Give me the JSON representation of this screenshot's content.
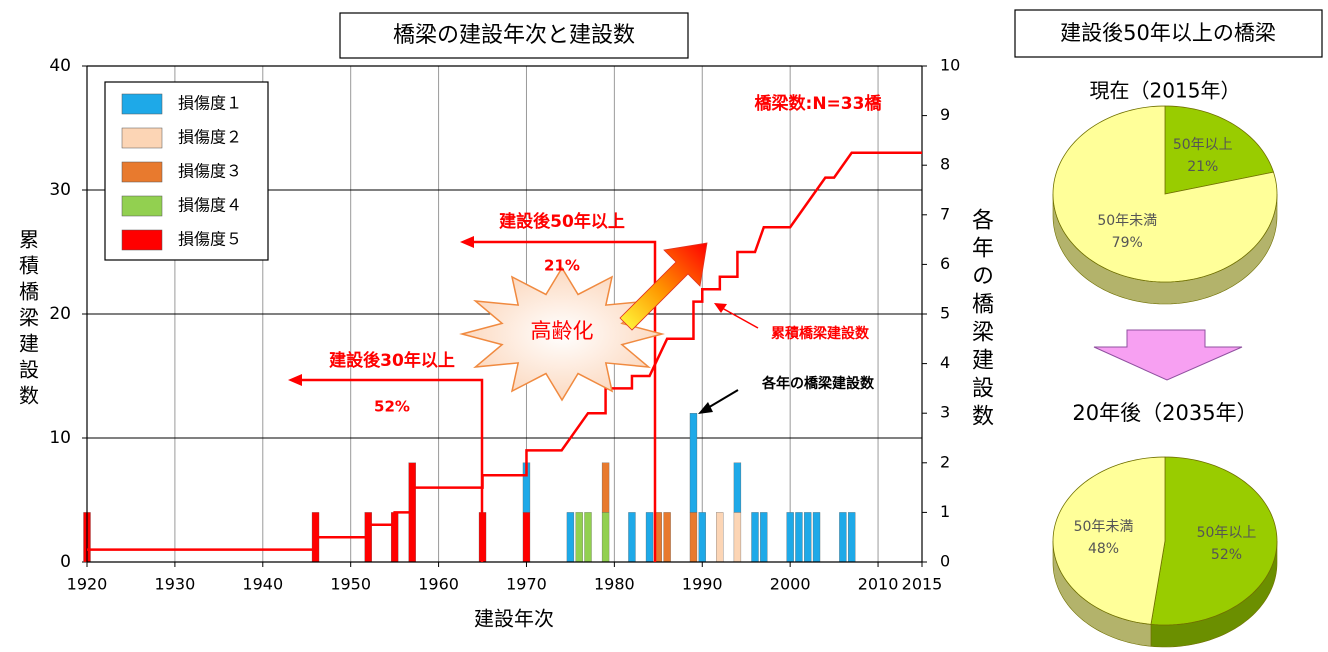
{
  "chart_data": [
    {
      "type": "bar",
      "title": "橋梁の建設年次と建設数",
      "x_label": "建設年次",
      "y_label": "累積橋梁建設数",
      "y2_label": "各年の橋梁建設数",
      "xlim": [
        1920,
        2015
      ],
      "xticks": [
        1920,
        1930,
        1940,
        1950,
        1960,
        1970,
        1980,
        1990,
        2000,
        2010,
        2015
      ],
      "ylim": [
        0,
        40
      ],
      "yticks": [
        0,
        10,
        20,
        30,
        40
      ],
      "y2lim": [
        0,
        10
      ],
      "y2ticks": [
        0,
        1,
        2,
        3,
        4,
        5,
        6,
        7,
        8,
        9,
        10
      ],
      "grid": true,
      "legend": "upper left",
      "x": [
        1920,
        1946,
        1952,
        1955,
        1957,
        1965,
        1970,
        1975,
        1976,
        1977,
        1979,
        1982,
        1984,
        1985,
        1986,
        1989,
        1990,
        1992,
        1994,
        1996,
        1997,
        2000,
        2001,
        2002,
        2003,
        2006,
        2007
      ],
      "series": [
        {
          "name": "損傷度１",
          "color": "#1ea9e8",
          "axis": "y2",
          "values": [
            null,
            null,
            null,
            null,
            null,
            null,
            1,
            1,
            null,
            null,
            null,
            1,
            1,
            null,
            null,
            2,
            1,
            null,
            1,
            1,
            1,
            1,
            1,
            1,
            1,
            1,
            1
          ]
        },
        {
          "name": "損傷度２",
          "color": "#fcd5b5",
          "axis": "y2",
          "values": [
            null,
            null,
            null,
            null,
            null,
            null,
            null,
            null,
            null,
            null,
            null,
            null,
            null,
            null,
            null,
            null,
            null,
            1,
            1,
            null,
            null,
            null,
            null,
            null,
            null,
            null,
            null
          ]
        },
        {
          "name": "損傷度３",
          "color": "#e87a2e",
          "axis": "y2",
          "values": [
            null,
            null,
            null,
            null,
            null,
            null,
            null,
            null,
            null,
            null,
            1,
            null,
            null,
            1,
            1,
            1,
            null,
            null,
            null,
            null,
            null,
            null,
            null,
            null,
            null,
            null,
            null
          ]
        },
        {
          "name": "損傷度４",
          "color": "#92d050",
          "axis": "y2",
          "values": [
            null,
            null,
            null,
            null,
            null,
            null,
            null,
            null,
            1,
            1,
            1,
            null,
            null,
            null,
            null,
            null,
            null,
            null,
            null,
            null,
            null,
            null,
            null,
            null,
            null,
            null,
            null
          ]
        },
        {
          "name": "損傷度５",
          "color": "#ff0000",
          "axis": "y2",
          "values": [
            1,
            1,
            1,
            1,
            2,
            1,
            1,
            null,
            null,
            null,
            null,
            null,
            null,
            null,
            null,
            null,
            null,
            null,
            null,
            null,
            null,
            null,
            null,
            null,
            null,
            null,
            null
          ]
        }
      ],
      "cumulative": {
        "color": "#ff0000",
        "x": [
          1920,
          1946,
          1946,
          1952,
          1952,
          1955,
          1955,
          1957,
          1957,
          1965,
          1965,
          1970,
          1970,
          1974,
          1977,
          1979,
          1979,
          1982,
          1982,
          1984,
          1986,
          1989,
          1989,
          1990,
          1990,
          1992,
          1992,
          1994,
          1994,
          1996,
          1997,
          2000,
          2004,
          2005,
          2007,
          2015
        ],
        "values": [
          1,
          1,
          2,
          2,
          3,
          3,
          4,
          4,
          6,
          6,
          7,
          7,
          9,
          9,
          12,
          12,
          14,
          14,
          15,
          15,
          18,
          18,
          21,
          21,
          22,
          22,
          23,
          23,
          25,
          25,
          27,
          27,
          31,
          31,
          33,
          33
        ]
      },
      "annotations": [
        "橋梁数:N=33橋",
        "建設後50年以上",
        "21%",
        "建設後30年以上",
        "52%",
        "高齢化",
        "累積橋梁建設数",
        "各年の橋梁建設数"
      ]
    },
    {
      "type": "pie",
      "title": "現在（2015年）",
      "categories": [
        "50年以上",
        "50年未満"
      ],
      "values": [
        21,
        79
      ],
      "value_labels": [
        "21%",
        "79%"
      ],
      "colors": [
        "#99cc00",
        "#ffff99"
      ]
    },
    {
      "type": "pie",
      "title": "20年後（2035年）",
      "categories": [
        "50年以上",
        "50年未満"
      ],
      "values": [
        52,
        48
      ],
      "value_labels": [
        "52%",
        "48%"
      ],
      "colors": [
        "#99cc00",
        "#ffff99"
      ]
    }
  ],
  "panel_title": "建設後50年以上の橋梁"
}
